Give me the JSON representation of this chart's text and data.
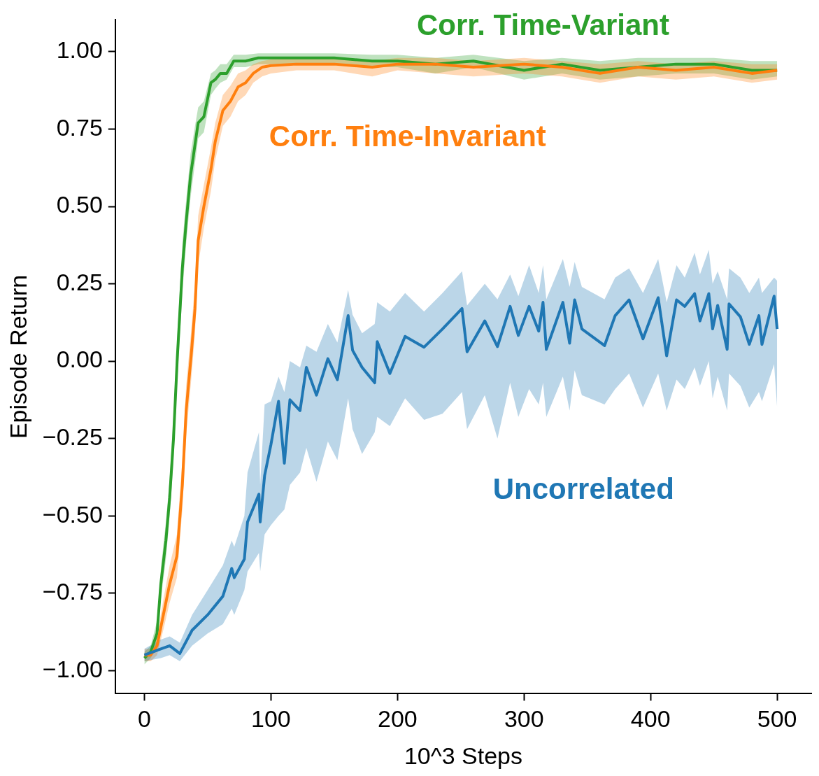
{
  "chart_data": {
    "type": "line",
    "xlabel": "10^3 Steps",
    "ylabel": "Episode Return",
    "xlim": [
      -23,
      527
    ],
    "ylim": [
      -1.075,
      1.103
    ],
    "xticks": [
      0,
      100,
      200,
      300,
      400,
      500
    ],
    "yticks": [
      {
        "value": -1,
        "label": "−1.00"
      },
      {
        "value": -0.75,
        "label": "−0.75"
      },
      {
        "value": -0.5,
        "label": "−0.50"
      },
      {
        "value": -0.25,
        "label": "−0.25"
      },
      {
        "value": 0,
        "label": "0.00"
      },
      {
        "value": 0.25,
        "label": "0.25"
      },
      {
        "value": 0.5,
        "label": "0.50"
      },
      {
        "value": 0.75,
        "label": "0.75"
      },
      {
        "value": 1,
        "label": "1.00"
      }
    ],
    "grid": false,
    "legend": false,
    "line_style": "solid",
    "marker": "none",
    "series": [
      {
        "name": "Uncorrelated",
        "color": "#1f77b4",
        "x": [
          0,
          13,
          20,
          28,
          37.7,
          50,
          62,
          69,
          71,
          79,
          81.5,
          90.5,
          91.5,
          95,
          100,
          106,
          110.6,
          115,
          123,
          128,
          136,
          145,
          152.5,
          161,
          164.5,
          172,
          182,
          184,
          194,
          206,
          221,
          235.6,
          251,
          255,
          269,
          279,
          289,
          295.5,
          304,
          311.6,
          315,
          317.6,
          330.7,
          336,
          340,
          345.7,
          363.6,
          372,
          383,
          394,
          406,
          412.7,
          420.5,
          427,
          434.8,
          439,
          446,
          449,
          453,
          460.5,
          462,
          471,
          478,
          485.6,
          488,
          497.6,
          500
        ],
        "values": [
          -0.95,
          -0.93,
          -0.92,
          -0.945,
          -0.87,
          -0.82,
          -0.76,
          -0.67,
          -0.7,
          -0.64,
          -0.52,
          -0.43,
          -0.52,
          -0.37,
          -0.27,
          -0.13,
          -0.33,
          -0.125,
          -0.16,
          -0.02,
          -0.11,
          0.008,
          -0.06,
          0.147,
          0.035,
          -0.02,
          -0.07,
          0.063,
          -0.04,
          0.08,
          0.045,
          0.104,
          0.17,
          0.03,
          0.13,
          0.047,
          0.177,
          0.083,
          0.177,
          0.097,
          0.19,
          0.038,
          0.19,
          0.058,
          0.198,
          0.104,
          0.05,
          0.147,
          0.198,
          0.072,
          0.205,
          0.017,
          0.198,
          0.177,
          0.218,
          0.13,
          0.218,
          0.104,
          0.18,
          0.038,
          0.185,
          0.143,
          0.054,
          0.147,
          0.054,
          0.21,
          0.104
        ],
        "lower": [
          -0.97,
          -0.96,
          -0.95,
          -0.97,
          -0.92,
          -0.88,
          -0.85,
          -0.8,
          -0.82,
          -0.74,
          -0.68,
          -0.62,
          -0.68,
          -0.56,
          -0.53,
          -0.5,
          -0.48,
          -0.4,
          -0.36,
          -0.28,
          -0.39,
          -0.26,
          -0.32,
          -0.12,
          -0.22,
          -0.3,
          -0.23,
          -0.18,
          -0.21,
          -0.12,
          -0.19,
          -0.17,
          -0.1,
          -0.22,
          -0.11,
          -0.25,
          -0.07,
          -0.18,
          -0.09,
          -0.14,
          -0.07,
          -0.18,
          -0.05,
          -0.16,
          -0.03,
          -0.11,
          -0.14,
          -0.09,
          -0.04,
          -0.15,
          -0.04,
          -0.16,
          -0.06,
          -0.09,
          -0.02,
          -0.08,
          0,
          -0.12,
          -0.05,
          -0.16,
          -0.04,
          -0.08,
          -0.15,
          -0.1,
          -0.13,
          -0.01,
          -0.15
        ],
        "upper": [
          -0.93,
          -0.9,
          -0.89,
          -0.91,
          -0.82,
          -0.74,
          -0.66,
          -0.58,
          -0.6,
          -0.5,
          -0.36,
          -0.23,
          -0.4,
          -0.14,
          -0.13,
          -0.05,
          -0.1,
          0,
          -0.02,
          0.05,
          0.03,
          0.12,
          0.06,
          0.23,
          0.15,
          0.09,
          0.12,
          0.19,
          0.16,
          0.22,
          0.16,
          0.22,
          0.29,
          0.18,
          0.25,
          0.2,
          0.28,
          0.21,
          0.31,
          0.22,
          0.31,
          0.2,
          0.33,
          0.24,
          0.32,
          0.24,
          0.2,
          0.27,
          0.3,
          0.22,
          0.33,
          0.19,
          0.31,
          0.27,
          0.35,
          0.28,
          0.36,
          0.25,
          0.29,
          0.2,
          0.3,
          0.27,
          0.22,
          0.27,
          0.22,
          0.27,
          0.26
        ]
      },
      {
        "name": "Corr. Time-Invariant",
        "color": "#ff7f0e",
        "x": [
          0,
          5,
          10,
          15.5,
          20,
          25.7,
          30,
          33,
          37,
          40,
          42.5,
          47,
          52.6,
          56,
          62,
          68,
          74,
          80,
          86,
          93,
          100,
          120,
          150,
          180,
          200,
          230,
          260,
          300,
          330,
          360,
          390,
          420,
          450,
          480,
          500
        ],
        "values": [
          -0.95,
          -0.95,
          -0.92,
          -0.81,
          -0.72,
          -0.63,
          -0.4,
          -0.16,
          0.02,
          0.17,
          0.39,
          0.5,
          0.62,
          0.71,
          0.81,
          0.84,
          0.886,
          0.9,
          0.93,
          0.95,
          0.955,
          0.96,
          0.96,
          0.95,
          0.96,
          0.96,
          0.95,
          0.96,
          0.95,
          0.93,
          0.95,
          0.94,
          0.95,
          0.93,
          0.94
        ],
        "lower": [
          -0.97,
          -0.97,
          -0.95,
          -0.86,
          -0.78,
          -0.7,
          -0.48,
          -0.24,
          -0.06,
          0.09,
          0.31,
          0.43,
          0.55,
          0.65,
          0.76,
          0.79,
          0.84,
          0.86,
          0.9,
          0.92,
          0.93,
          0.94,
          0.94,
          0.92,
          0.94,
          0.93,
          0.92,
          0.93,
          0.92,
          0.9,
          0.92,
          0.91,
          0.92,
          0.9,
          0.91
        ],
        "upper": [
          -0.93,
          -0.93,
          -0.89,
          -0.76,
          -0.66,
          -0.56,
          -0.32,
          -0.08,
          0.1,
          0.25,
          0.47,
          0.57,
          0.69,
          0.77,
          0.86,
          0.89,
          0.93,
          0.94,
          0.96,
          0.97,
          0.975,
          0.98,
          0.98,
          0.97,
          0.98,
          0.98,
          0.97,
          0.98,
          0.97,
          0.96,
          0.97,
          0.96,
          0.97,
          0.96,
          0.96
        ]
      },
      {
        "name": "Corr. Time-Variant",
        "color": "#2ca02c",
        "x": [
          0,
          5,
          10,
          13,
          17,
          20,
          23,
          26,
          30,
          33,
          36.5,
          40,
          42.5,
          47,
          52.6,
          56,
          60,
          65,
          70.6,
          80,
          90,
          100,
          120,
          150,
          180,
          200,
          230,
          260,
          300,
          330,
          360,
          390,
          420,
          450,
          480,
          500
        ],
        "values": [
          -0.96,
          -0.94,
          -0.88,
          -0.72,
          -0.58,
          -0.44,
          -0.25,
          0.01,
          0.3,
          0.45,
          0.6,
          0.7,
          0.77,
          0.79,
          0.9,
          0.91,
          0.93,
          0.93,
          0.97,
          0.97,
          0.98,
          0.98,
          0.98,
          0.98,
          0.97,
          0.97,
          0.96,
          0.97,
          0.94,
          0.96,
          0.94,
          0.95,
          0.96,
          0.96,
          0.94,
          0.94
        ],
        "lower": [
          -0.98,
          -0.96,
          -0.92,
          -0.77,
          -0.64,
          -0.5,
          -0.32,
          -0.06,
          0.22,
          0.38,
          0.53,
          0.64,
          0.72,
          0.74,
          0.86,
          0.88,
          0.9,
          0.91,
          0.95,
          0.95,
          0.96,
          0.96,
          0.96,
          0.96,
          0.95,
          0.95,
          0.93,
          0.95,
          0.91,
          0.93,
          0.91,
          0.92,
          0.93,
          0.93,
          0.91,
          0.92
        ],
        "upper": [
          -0.94,
          -0.92,
          -0.84,
          -0.67,
          -0.52,
          -0.38,
          -0.18,
          0.08,
          0.38,
          0.52,
          0.67,
          0.76,
          0.82,
          0.84,
          0.93,
          0.94,
          0.96,
          0.96,
          0.99,
          0.99,
          0.995,
          0.995,
          0.995,
          0.995,
          0.99,
          0.99,
          0.98,
          0.99,
          0.97,
          0.98,
          0.97,
          0.98,
          0.98,
          0.98,
          0.97,
          0.97
        ]
      }
    ]
  }
}
